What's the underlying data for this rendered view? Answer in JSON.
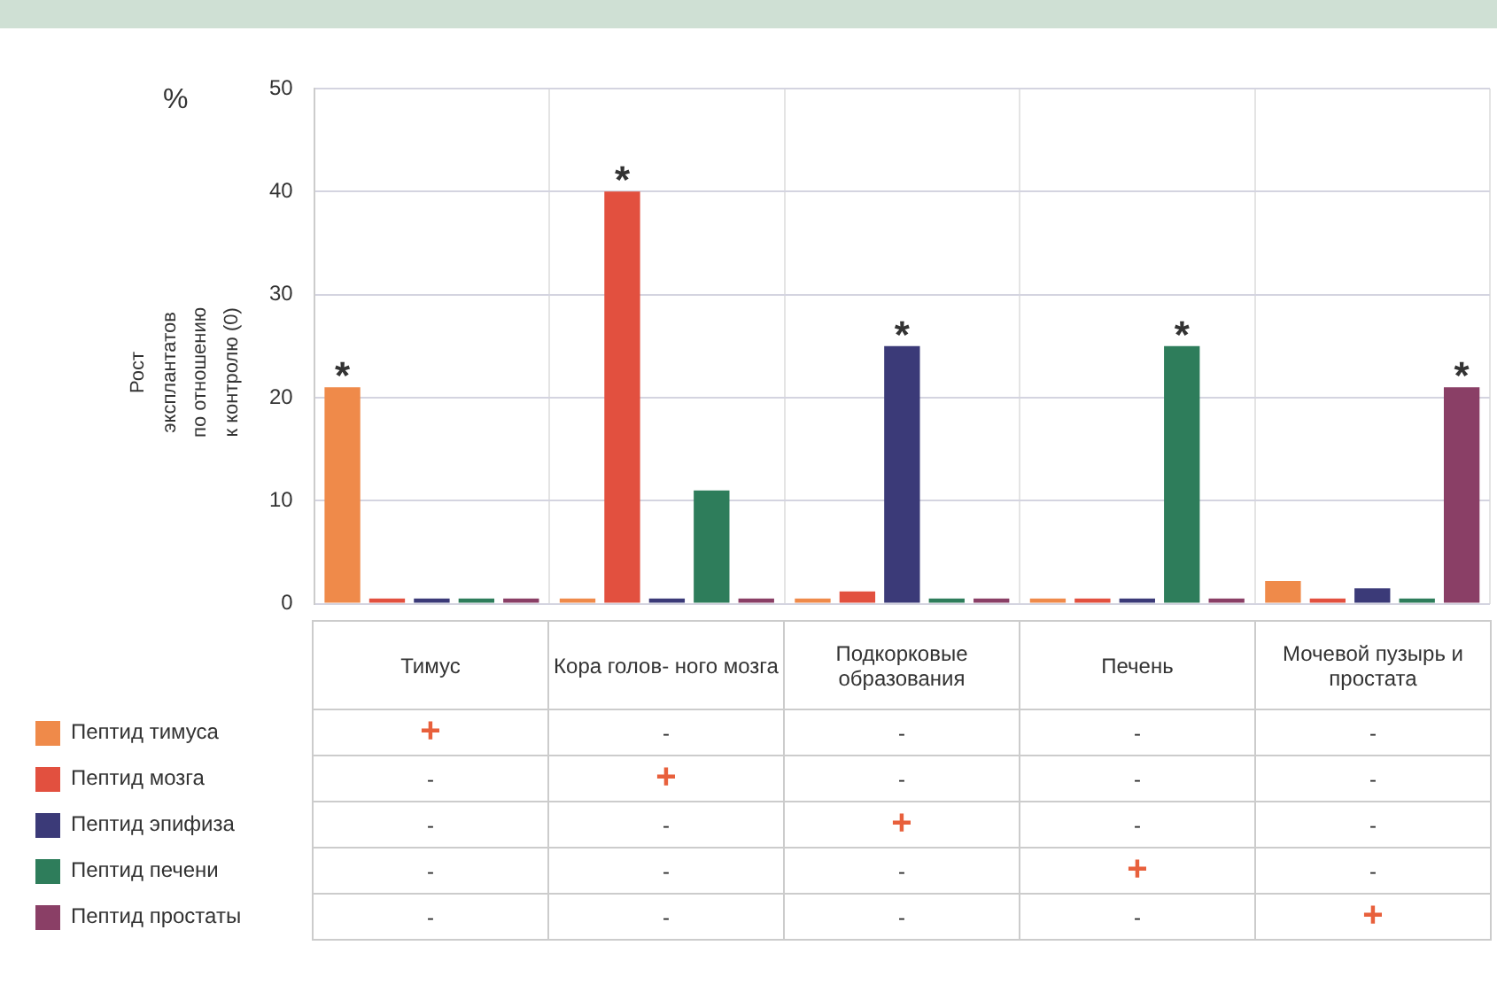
{
  "chart_data": {
    "type": "bar",
    "ylabel": "Рост эксплантатов по отношению к контролю (0)",
    "categories": [
      "Тимус",
      "Кора голов- ного мозга",
      "Подкорковые образования",
      "Печень",
      "Мочевой пузырь и простата"
    ],
    "series": [
      {
        "name": "Пептид тимуса",
        "color": "#ef8a4a",
        "values": [
          21,
          0.5,
          0.5,
          0.5,
          2.2
        ]
      },
      {
        "name": "Пептид мозга",
        "color": "#e2503f",
        "values": [
          0.5,
          40,
          1.2,
          0.5,
          0.5
        ]
      },
      {
        "name": "Пептид эпифиза",
        "color": "#3b3a78",
        "values": [
          0.5,
          0.5,
          25,
          0.5,
          1.5
        ]
      },
      {
        "name": "Пептид печени",
        "color": "#2e7d5b",
        "values": [
          0.5,
          11,
          0.5,
          25,
          0.5
        ]
      },
      {
        "name": "Пептид простаты",
        "color": "#8a3f66",
        "values": [
          0.5,
          0.5,
          0.5,
          0.5,
          21
        ]
      }
    ],
    "ylim": [
      0,
      50
    ],
    "yticks": [
      0,
      10,
      20,
      30,
      40,
      50
    ],
    "grid": "y",
    "legend": "bottom left",
    "annotations": [
      "%",
      "*",
      "*",
      "*",
      "*",
      "*",
      "+",
      "-",
      "-",
      "-",
      "-",
      "-",
      "+",
      "-",
      "-",
      "-",
      "-",
      "-",
      "+",
      "-",
      "-",
      "-",
      "-",
      "-",
      "+",
      "-",
      "-",
      "-",
      "-",
      "-",
      "+"
    ]
  }
}
